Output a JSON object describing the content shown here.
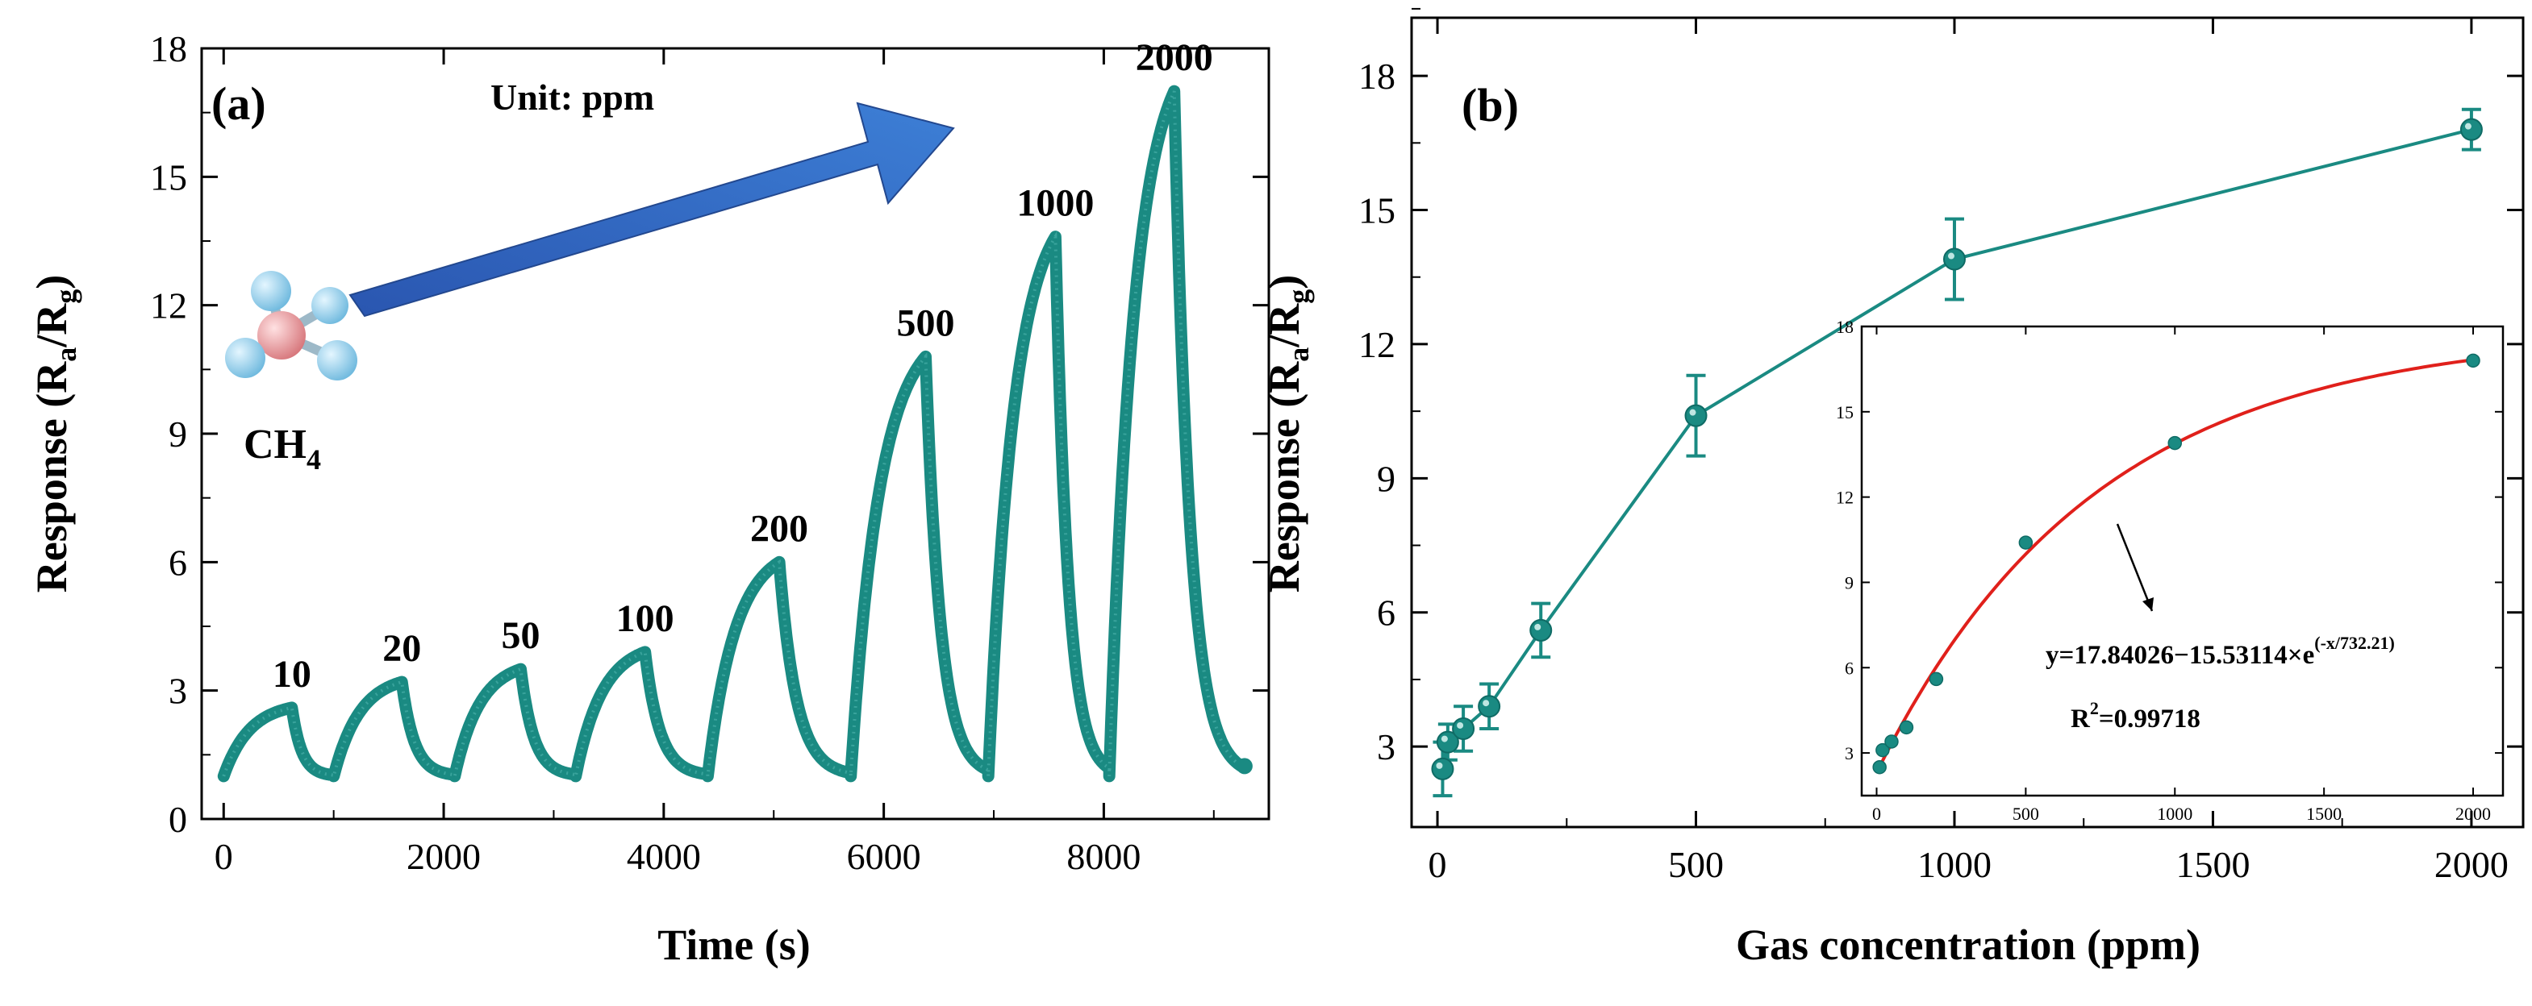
{
  "colors": {
    "teal": "#1a8a82",
    "teal_dark": "#0f6b65",
    "fit_red": "#e0201b",
    "arrow_blue": "#2f63bf",
    "atom_light_blue": "#8fd3f0",
    "atom_pink": "#e79a9e",
    "black": "#000000"
  },
  "chart_data": [
    {
      "id": "a",
      "type": "line",
      "panel_label": "(a)",
      "title": "",
      "xlabel": "Time (s)",
      "ylabel_main": "Response (R",
      "ylabel_sub1": "a",
      "ylabel_mid": "/R",
      "ylabel_sub2": "g",
      "ylabel_close": ")",
      "xlim": [
        -200,
        9500
      ],
      "ylim": [
        0,
        18
      ],
      "xticks": [
        0,
        2000,
        4000,
        6000,
        8000
      ],
      "xtick_labels": [
        "0",
        "2000",
        "4000",
        "6000",
        "8000"
      ],
      "yticks": [
        0,
        3,
        6,
        9,
        12,
        15,
        18
      ],
      "ytick_labels": [
        "0",
        "3",
        "6",
        "9",
        "12",
        "15",
        "18"
      ],
      "unit_text": "Unit: ppm",
      "molecule_label_main": "CH",
      "molecule_label_sub": "4",
      "molecule_icon": "methane-molecule-icon",
      "arrow_icon": "trend-arrow-icon",
      "baseline": 1.0,
      "pulses": [
        {
          "concentration": "10",
          "start": 0,
          "peak_time": 620,
          "peak": 2.6,
          "end": 1000
        },
        {
          "concentration": "20",
          "start": 1000,
          "peak_time": 1620,
          "peak": 3.2,
          "end": 2100
        },
        {
          "concentration": "50",
          "start": 2100,
          "peak_time": 2700,
          "peak": 3.5,
          "end": 3200
        },
        {
          "concentration": "100",
          "start": 3200,
          "peak_time": 3830,
          "peak": 3.9,
          "end": 4400
        },
        {
          "concentration": "200",
          "start": 4400,
          "peak_time": 5050,
          "peak": 6.0,
          "end": 5700
        },
        {
          "concentration": "500",
          "start": 5700,
          "peak_time": 6380,
          "peak": 10.8,
          "end": 6950
        },
        {
          "concentration": "1000",
          "start": 6950,
          "peak_time": 7560,
          "peak": 13.6,
          "end": 8050
        },
        {
          "concentration": "2000",
          "start": 8050,
          "peak_time": 8640,
          "peak": 17.0,
          "end": 9250
        }
      ]
    },
    {
      "id": "b",
      "type": "line",
      "panel_label": "(b)",
      "title": "",
      "xlabel": "Gas concentration (ppm)",
      "ylabel_main": "Response (R",
      "ylabel_sub1": "a",
      "ylabel_mid": "/R",
      "ylabel_sub2": "g",
      "ylabel_close": ")",
      "xlim": [
        -50,
        2100
      ],
      "ylim": [
        1.2,
        19.3
      ],
      "xticks": [
        0,
        500,
        1000,
        1500,
        2000
      ],
      "xtick_labels": [
        "0",
        "500",
        "1000",
        "1500",
        "2000"
      ],
      "yticks": [
        3,
        6,
        9,
        12,
        15,
        18
      ],
      "ytick_labels": [
        "3",
        "6",
        "9",
        "12",
        "15",
        "18"
      ],
      "series": [
        {
          "name": "response",
          "x": [
            10,
            20,
            50,
            100,
            200,
            500,
            1000,
            2000
          ],
          "y": [
            2.5,
            3.1,
            3.4,
            3.9,
            5.6,
            10.4,
            13.9,
            16.8
          ],
          "yerr": [
            0.6,
            0.4,
            0.5,
            0.5,
            0.6,
            0.9,
            0.9,
            0.45
          ]
        }
      ],
      "inset": {
        "type": "scatter",
        "xlim": [
          -50,
          2100
        ],
        "ylim": [
          1.5,
          18
        ],
        "xticks": [
          0,
          500,
          1000,
          1500,
          2000
        ],
        "xtick_labels": [
          "0",
          "500",
          "1000",
          "1500",
          "2000"
        ],
        "yticks": [
          3,
          6,
          9,
          12,
          15,
          18
        ],
        "ytick_labels": [
          "3",
          "6",
          "9",
          "12",
          "15",
          "18"
        ],
        "x": [
          10,
          20,
          50,
          100,
          200,
          500,
          1000,
          2000
        ],
        "y": [
          2.5,
          3.1,
          3.4,
          3.9,
          5.6,
          10.4,
          13.9,
          16.8
        ],
        "fit": {
          "a": 17.84026,
          "b": 15.53114,
          "c": 732.21,
          "x_range": [
            0,
            2000
          ]
        },
        "equation_main": "y=17.84026−15.53114×e",
        "equation_exp": "(-x/732.21)",
        "r2_main": "R",
        "r2_sup": "2",
        "r2_value": "=0.99718"
      }
    }
  ]
}
